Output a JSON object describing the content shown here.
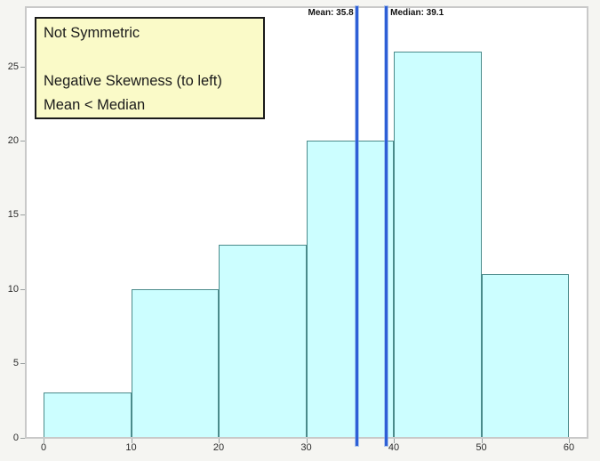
{
  "figure": {
    "background_color": "#f5f5f2",
    "plot_background": "#ffffff",
    "plot_border_color": "#c9c9c9"
  },
  "annotation": {
    "lines": [
      "Not Symmetric",
      "",
      "Negative Skewness (to left)",
      "Mean < Median"
    ],
    "background": "#fafac8",
    "border_color": "#1a1a1a"
  },
  "chart_data": {
    "type": "bar",
    "kind": "histogram",
    "title": "",
    "xlabel": "",
    "ylabel": "",
    "grid": false,
    "legend": false,
    "bins": [
      {
        "x0": 0,
        "x1": 10,
        "count": 3
      },
      {
        "x0": 10,
        "x1": 20,
        "count": 10
      },
      {
        "x0": 20,
        "x1": 30,
        "count": 13
      },
      {
        "x0": 30,
        "x1": 40,
        "count": 20
      },
      {
        "x0": 40,
        "x1": 50,
        "count": 26
      },
      {
        "x0": 50,
        "x1": 60,
        "count": 11
      }
    ],
    "x_ticks": [
      0,
      10,
      20,
      30,
      40,
      50,
      60
    ],
    "y_ticks": [
      0,
      5,
      10,
      15,
      20,
      25
    ],
    "xlim": [
      -2.1,
      62.3
    ],
    "ylim": [
      0,
      29.1
    ],
    "bar_fill": "#ccfeff",
    "bar_border": "#4b8b8b",
    "reference_lines": [
      {
        "name": "mean",
        "label": "Mean: 35.8",
        "value": 35.8,
        "color": "#2e5fd6",
        "label_side": "left"
      },
      {
        "name": "median",
        "label": "Median: 39.1",
        "value": 39.1,
        "color": "#2e5fd6",
        "label_side": "right"
      }
    ]
  }
}
